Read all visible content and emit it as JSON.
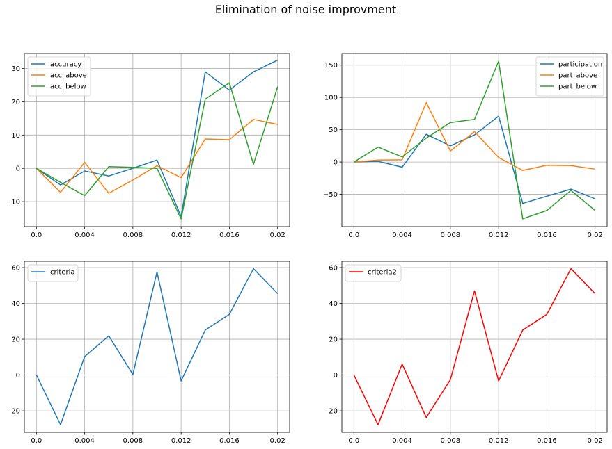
{
  "figure": {
    "title": "Elimination of noise improvment"
  },
  "chart_data": [
    {
      "type": "line",
      "x": [
        0.0,
        0.002,
        0.004,
        0.006,
        0.008,
        0.01,
        0.012,
        0.014,
        0.016,
        0.018,
        0.02
      ],
      "x_ticks": [
        0.0,
        0.004,
        0.008,
        0.012,
        0.016,
        0.02
      ],
      "x_tick_labels": [
        "0.0",
        "0.004",
        "0.008",
        "0.012",
        "0.016",
        "0.02"
      ],
      "xlim": [
        -0.001,
        0.021
      ],
      "ylim": [
        -17.5,
        34.5
      ],
      "y_ticks": [
        -10,
        0,
        10,
        20,
        30
      ],
      "y_tick_labels": [
        "−10",
        "0",
        "10",
        "20",
        "30"
      ],
      "grid": true,
      "legend": "upper-left",
      "series": [
        {
          "name": "accuracy",
          "color": "#1f77b4",
          "values": [
            0,
            -5,
            -0.8,
            -2.3,
            0,
            2.5,
            -14.5,
            29.0,
            23.5,
            29.0,
            32.5
          ]
        },
        {
          "name": "acc_above",
          "color": "#ff7f0e",
          "values": [
            0,
            -7.2,
            1.8,
            -7.5,
            -3.5,
            0.8,
            -2.8,
            8.8,
            8.6,
            14.7,
            13.2
          ]
        },
        {
          "name": "acc_below",
          "color": "#2ca02c",
          "values": [
            0,
            -4.2,
            -8.2,
            0.5,
            0.3,
            0,
            -15.2,
            20.8,
            25.7,
            1.2,
            24.5
          ]
        }
      ]
    },
    {
      "type": "line",
      "x": [
        0.0,
        0.002,
        0.004,
        0.006,
        0.008,
        0.01,
        0.012,
        0.014,
        0.016,
        0.018,
        0.02
      ],
      "x_ticks": [
        0.0,
        0.004,
        0.008,
        0.012,
        0.016,
        0.02
      ],
      "x_tick_labels": [
        "0.0",
        "0.004",
        "0.008",
        "0.012",
        "0.016",
        "0.02"
      ],
      "xlim": [
        -0.001,
        0.021
      ],
      "ylim": [
        -100,
        168
      ],
      "y_ticks": [
        -50,
        0,
        50,
        100,
        150
      ],
      "y_tick_labels": [
        "−50",
        "0",
        "50",
        "100",
        "150"
      ],
      "grid": true,
      "legend": "upper-right",
      "series": [
        {
          "name": "participation",
          "color": "#1f77b4",
          "values": [
            0,
            1,
            -8,
            43,
            25,
            42,
            71,
            -64,
            -53,
            -42,
            -57
          ]
        },
        {
          "name": "part_above",
          "color": "#ff7f0e",
          "values": [
            0,
            3,
            3.5,
            92,
            17,
            47,
            7,
            -13,
            -5,
            -5.5,
            -11
          ]
        },
        {
          "name": "part_below",
          "color": "#2ca02c",
          "values": [
            0,
            23,
            8,
            37,
            61,
            66,
            156,
            -88,
            -75,
            -44,
            -75
          ]
        }
      ]
    },
    {
      "type": "line",
      "x": [
        0.0,
        0.002,
        0.004,
        0.006,
        0.008,
        0.01,
        0.012,
        0.014,
        0.016,
        0.018,
        0.02
      ],
      "x_ticks": [
        0.0,
        0.004,
        0.008,
        0.012,
        0.016,
        0.02
      ],
      "x_tick_labels": [
        "0.0",
        "0.004",
        "0.008",
        "0.012",
        "0.016",
        "0.02"
      ],
      "xlim": [
        -0.001,
        0.021
      ],
      "ylim": [
        -32,
        63.5
      ],
      "y_ticks": [
        -20,
        0,
        20,
        40,
        60
      ],
      "y_tick_labels": [
        "−20",
        "0",
        "20",
        "40",
        "60"
      ],
      "grid": true,
      "legend": "upper-left",
      "series": [
        {
          "name": "criteria",
          "color": "#1f77b4",
          "values": [
            0,
            -27.7,
            10.3,
            21.9,
            0.3,
            57.6,
            -3.3,
            25.1,
            33.9,
            59.4,
            45.5
          ]
        }
      ]
    },
    {
      "type": "line",
      "x": [
        0.0,
        0.002,
        0.004,
        0.006,
        0.008,
        0.01,
        0.012,
        0.014,
        0.016,
        0.018,
        0.02
      ],
      "x_ticks": [
        0.0,
        0.004,
        0.008,
        0.012,
        0.016,
        0.02
      ],
      "x_tick_labels": [
        "0.0",
        "0.004",
        "0.008",
        "0.012",
        "0.016",
        "0.02"
      ],
      "xlim": [
        -0.001,
        0.021
      ],
      "ylim": [
        -32,
        63.5
      ],
      "y_ticks": [
        -20,
        0,
        20,
        40,
        60
      ],
      "y_tick_labels": [
        "−20",
        "0",
        "20",
        "40",
        "60"
      ],
      "grid": true,
      "legend": "upper-left",
      "series": [
        {
          "name": "criteria2",
          "color": "#ff0000",
          "values": [
            0,
            -27.7,
            6.1,
            -23.7,
            -2.6,
            47.0,
            -3.3,
            25.1,
            33.9,
            59.4,
            45.5
          ]
        }
      ]
    }
  ]
}
